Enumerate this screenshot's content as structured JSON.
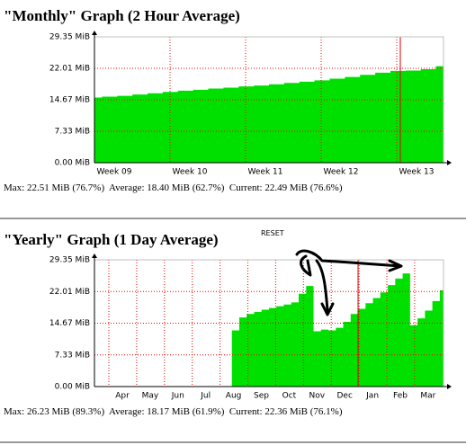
{
  "chart_data": [
    {
      "type": "area",
      "title": "\"Monthly\" Graph (2 Hour Average)",
      "xtick_labels": [
        "Week 09",
        "Week 10",
        "Week 11",
        "Week 12",
        "Week 13"
      ],
      "values": [
        15.2,
        15.4,
        15.6,
        15.9,
        16.2,
        16.5,
        16.8,
        17.0,
        17.3,
        17.5,
        17.8,
        18.0,
        18.3,
        18.6,
        18.9,
        19.2,
        19.6,
        20.0,
        20.5,
        21.0,
        21.4,
        21.5,
        21.8,
        22.5
      ],
      "color": "#00e000",
      "ylim": [
        0,
        29.35
      ],
      "yticks": [
        {
          "value": 0,
          "label": "0.00 MiB"
        },
        {
          "value": 7.33,
          "label": "7.33 MiB"
        },
        {
          "value": 14.67,
          "label": "14.67 MiB"
        },
        {
          "value": 22.01,
          "label": "22.01 MiB"
        },
        {
          "value": 29.35,
          "label": "29.35 MiB"
        }
      ],
      "grid": true,
      "stats": "Max: 22.51 MiB (76.7%)  Average: 18.40 MiB (62.7%)  Current: 22.49 MiB (76.6%)"
    },
    {
      "type": "area",
      "title": "\"Yearly\" Graph (1 Day Average)",
      "annotation": "RESET",
      "xtick_labels": [
        "Apr",
        "May",
        "Jun",
        "Jul",
        "Aug",
        "Sep",
        "Oct",
        "Nov",
        "Dec",
        "Jan",
        "Feb",
        "Mar"
      ],
      "values": [
        null,
        null,
        null,
        null,
        null,
        null,
        null,
        null,
        null,
        null,
        null,
        null,
        null,
        null,
        null,
        null,
        null,
        null,
        null,
        13.0,
        16.0,
        16.8,
        17.3,
        17.8,
        18.2,
        18.6,
        19.0,
        19.5,
        21.5,
        23.3,
        12.8,
        13.2,
        13.0,
        13.6,
        15.0,
        16.8,
        18.0,
        19.3,
        20.5,
        21.8,
        23.5,
        25.0,
        26.2,
        14.2,
        15.8,
        17.6,
        19.8,
        22.3
      ],
      "color": "#00e000",
      "ylim": [
        0,
        29.35
      ],
      "yticks": [
        {
          "value": 0,
          "label": "0.00 MiB"
        },
        {
          "value": 7.33,
          "label": "7.33 MiB"
        },
        {
          "value": 14.67,
          "label": "14.67 MiB"
        },
        {
          "value": 22.01,
          "label": "22.01 MiB"
        },
        {
          "value": 29.35,
          "label": "29.35 MiB"
        }
      ],
      "grid": true,
      "stats": "Max: 26.23 MiB (89.3%)  Average: 18.17 MiB (61.9%)  Current: 22.36 MiB (76.1%)"
    }
  ]
}
